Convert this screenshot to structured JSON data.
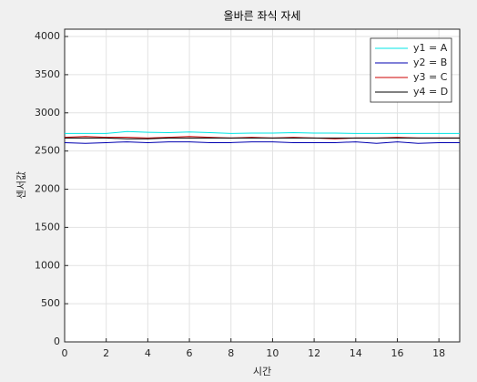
{
  "chart_data": {
    "type": "line",
    "title": "올바른 좌식 자세",
    "x_label": "시간",
    "y_label": "센서값",
    "x": [
      0,
      1,
      2,
      3,
      4,
      5,
      6,
      7,
      8,
      9,
      10,
      11,
      12,
      13,
      14,
      15,
      16,
      17,
      18,
      19
    ],
    "series": [
      {
        "name": "y1 = A",
        "color": "#00e5e5",
        "values": [
          2730,
          2730,
          2730,
          2755,
          2745,
          2740,
          2750,
          2740,
          2730,
          2735,
          2735,
          2740,
          2735,
          2735,
          2730,
          2730,
          2730,
          2730,
          2730,
          2730
        ]
      },
      {
        "name": "y2 = B",
        "color": "#0000b0",
        "values": [
          2610,
          2600,
          2610,
          2620,
          2610,
          2620,
          2620,
          2610,
          2610,
          2620,
          2620,
          2610,
          2610,
          2610,
          2620,
          2600,
          2620,
          2600,
          2610,
          2610
        ]
      },
      {
        "name": "y3 = C",
        "color": "#cc0000",
        "values": [
          2680,
          2690,
          2680,
          2680,
          2670,
          2680,
          2690,
          2680,
          2670,
          2680,
          2670,
          2680,
          2670,
          2660,
          2670,
          2670,
          2680,
          2670,
          2670,
          2670
        ]
      },
      {
        "name": "y4 = D",
        "color": "#000000",
        "values": [
          2670,
          2670,
          2670,
          2660,
          2660,
          2670,
          2670,
          2670,
          2670,
          2670,
          2670,
          2670,
          2670,
          2670,
          2670,
          2670,
          2670,
          2670,
          2670,
          2670
        ]
      }
    ],
    "xlim": [
      0,
      19
    ],
    "xticks": [
      0,
      2,
      4,
      6,
      8,
      10,
      12,
      14,
      16,
      18
    ],
    "ylim": [
      0,
      4096
    ],
    "yticks": [
      0,
      500,
      1000,
      1500,
      2000,
      2500,
      3000,
      3500,
      4000
    ],
    "grid": true,
    "legend_position": "northeast"
  }
}
